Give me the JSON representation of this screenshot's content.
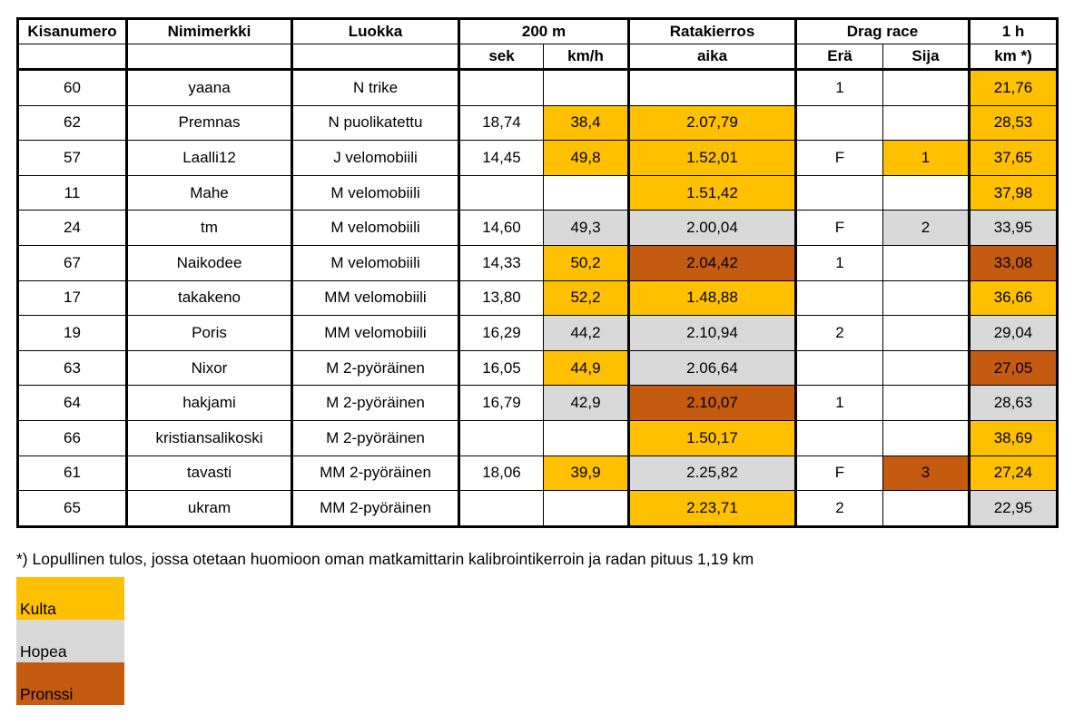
{
  "table": {
    "header": {
      "kisanumero": "Kisanumero",
      "nimimerkki": "Nimimerkki",
      "luokka": "Luokka",
      "m200": "200 m",
      "ratakierros": "Ratakierros",
      "dragrace": "Drag race",
      "h1": "1 h",
      "sek": "sek",
      "kmh": "km/h",
      "aika": "aika",
      "era": "Erä",
      "sija": "Sija",
      "km": "km *)"
    },
    "rows": [
      {
        "kisanumero": "60",
        "nimimerkki": "yaana",
        "luokka": "N trike",
        "sek": "",
        "kmh": "",
        "aika": "",
        "era": "1",
        "sija": "",
        "km": "21,76",
        "medals": {
          "km": "gold"
        }
      },
      {
        "kisanumero": "62",
        "nimimerkki": "Premnas",
        "luokka": "N puolikatettu",
        "sek": "18,74",
        "kmh": "38,4",
        "aika": "2.07,79",
        "era": "",
        "sija": "",
        "km": "28,53",
        "medals": {
          "kmh": "gold",
          "aika": "gold",
          "km": "gold"
        }
      },
      {
        "kisanumero": "57",
        "nimimerkki": "Laalli12",
        "luokka": "J velomobiili",
        "sek": "14,45",
        "kmh": "49,8",
        "aika": "1.52,01",
        "era": "F",
        "sija": "1",
        "km": "37,65",
        "medals": {
          "kmh": "gold",
          "aika": "gold",
          "sija": "gold",
          "km": "gold"
        }
      },
      {
        "kisanumero": "11",
        "nimimerkki": "Mahe",
        "luokka": "M velomobiili",
        "sek": "",
        "kmh": "",
        "aika": "1.51,42",
        "era": "",
        "sija": "",
        "km": "37,98",
        "medals": {
          "aika": "gold",
          "km": "gold"
        }
      },
      {
        "kisanumero": "24",
        "nimimerkki": "tm",
        "luokka": "M velomobiili",
        "sek": "14,60",
        "kmh": "49,3",
        "aika": "2.00,04",
        "era": "F",
        "sija": "2",
        "km": "33,95",
        "medals": {
          "kmh": "silver",
          "aika": "silver",
          "sija": "silver",
          "km": "silver"
        }
      },
      {
        "kisanumero": "67",
        "nimimerkki": "Naikodee",
        "luokka": "M velomobiili",
        "sek": "14,33",
        "kmh": "50,2",
        "aika": "2.04,42",
        "era": "1",
        "sija": "",
        "km": "33,08",
        "medals": {
          "kmh": "gold",
          "aika": "bronze",
          "km": "bronze"
        }
      },
      {
        "kisanumero": "17",
        "nimimerkki": "takakeno",
        "luokka": "MM velomobiili",
        "sek": "13,80",
        "kmh": "52,2",
        "aika": "1.48,88",
        "era": "",
        "sija": "",
        "km": "36,66",
        "medals": {
          "kmh": "gold",
          "aika": "gold",
          "km": "gold"
        }
      },
      {
        "kisanumero": "19",
        "nimimerkki": "Poris",
        "luokka": "MM velomobiili",
        "sek": "16,29",
        "kmh": "44,2",
        "aika": "2.10,94",
        "era": "2",
        "sija": "",
        "km": "29,04",
        "medals": {
          "kmh": "silver",
          "aika": "silver",
          "km": "silver"
        }
      },
      {
        "kisanumero": "63",
        "nimimerkki": "Nixor",
        "luokka": "M 2-pyöräinen",
        "sek": "16,05",
        "kmh": "44,9",
        "aika": "2.06,64",
        "era": "",
        "sija": "",
        "km": "27,05",
        "medals": {
          "kmh": "gold",
          "aika": "silver",
          "km": "bronze"
        }
      },
      {
        "kisanumero": "64",
        "nimimerkki": "hakjami",
        "luokka": "M 2-pyöräinen",
        "sek": "16,79",
        "kmh": "42,9",
        "aika": "2.10,07",
        "era": "1",
        "sija": "",
        "km": "28,63",
        "medals": {
          "kmh": "silver",
          "aika": "bronze",
          "km": "silver"
        }
      },
      {
        "kisanumero": "66",
        "nimimerkki": "kristiansalikoski",
        "luokka": "M 2-pyöräinen",
        "sek": "",
        "kmh": "",
        "aika": "1.50,17",
        "era": "",
        "sija": "",
        "km": "38,69",
        "medals": {
          "aika": "gold",
          "km": "gold"
        }
      },
      {
        "kisanumero": "61",
        "nimimerkki": "tavasti",
        "luokka": "MM 2-pyöräinen",
        "sek": "18,06",
        "kmh": "39,9",
        "aika": "2.25,82",
        "era": "F",
        "sija": "3",
        "km": "27,24",
        "medals": {
          "kmh": "gold",
          "aika": "silver",
          "sija": "bronze",
          "km": "gold"
        }
      },
      {
        "kisanumero": "65",
        "nimimerkki": "ukram",
        "luokka": "MM 2-pyöräinen",
        "sek": "",
        "kmh": "",
        "aika": "2.23,71",
        "era": "2",
        "sija": "",
        "km": "22,95",
        "medals": {
          "aika": "gold",
          "km": "silver"
        }
      }
    ]
  },
  "footnote": "*) Lopullinen tulos, jossa otetaan huomioon oman matkamittarin kalibrointikerroin ja radan pituus 1,19 km",
  "legend": {
    "items": [
      {
        "label": "Kulta",
        "medal": "gold"
      },
      {
        "label": "Hopea",
        "medal": "silver"
      },
      {
        "label": "Pronssi",
        "medal": "bronze"
      }
    ]
  },
  "colors": {
    "gold": "#FFC000",
    "silver": "#D9D9D9",
    "bronze": "#C55A11"
  }
}
